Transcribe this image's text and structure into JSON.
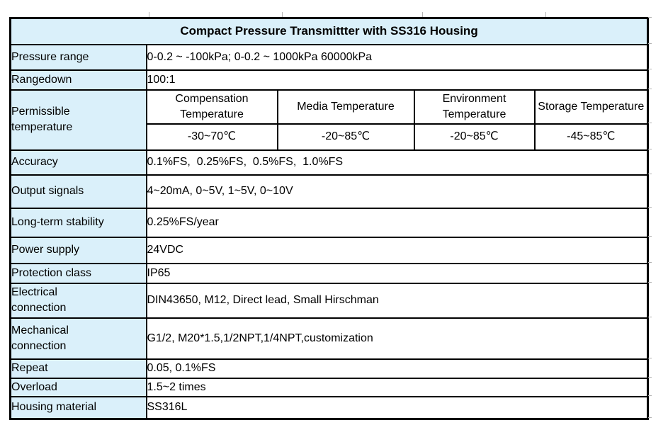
{
  "title": "Compact Pressure Transmittter with SS316 Housing",
  "colors": {
    "header_bg": "#daf0fa",
    "border_color": "#000000",
    "page_bg": "#ffffff",
    "text_color": "#000000"
  },
  "spec_rows": {
    "pressure_range": {
      "label": "Pressure range",
      "value": "0-0.2 ~ -100kPa; 0-0.2 ~ 1000kPa 60000kPa"
    },
    "rangedown": {
      "label": "Rangedown",
      "value": "100:1"
    },
    "accuracy": {
      "label": "Accuracy",
      "value": "0.1%FS,  0.25%FS,  0.5%FS,  1.0%FS"
    },
    "output_signals": {
      "label": "Output signals",
      "value": "4~20mA, 0~5V, 1~5V, 0~10V"
    },
    "long_term_stability": {
      "label": "Long-term stability",
      "value": "0.25%FS/year"
    },
    "power_supply": {
      "label": "Power supply",
      "value": "24VDC"
    },
    "protection_class": {
      "label": "Protection class",
      "value": "IP65"
    },
    "electrical_connection": {
      "label": "Electrical connection",
      "value": "DIN43650, M12, Direct lead, Small Hirschman"
    },
    "mechanical_connection": {
      "label": "Mechanical connection",
      "value": "G1/2, M20*1.5,1/2NPT,1/4NPT,customization"
    },
    "repeat": {
      "label": "Repeat",
      "value": "0.05, 0.1%FS"
    },
    "overload": {
      "label": "Overload",
      "value": "1.5~2 times"
    },
    "housing_material": {
      "label": "Housing material",
      "value": "SS316L"
    }
  },
  "permissible_temperature": {
    "label": "Permissible temperature",
    "columns": [
      {
        "header": "Compensation Temperature",
        "value": "-30~70℃"
      },
      {
        "header": "Media Temperature",
        "value": "-20~85℃"
      },
      {
        "header": "Environment Temperature",
        "value": "-20~85℃"
      },
      {
        "header": "Storage Temperature",
        "value": "-45~85℃"
      }
    ]
  }
}
